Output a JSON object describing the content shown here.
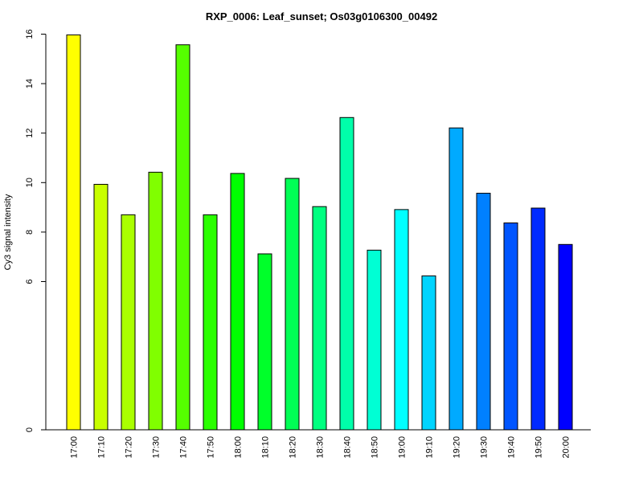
{
  "chart_data": {
    "type": "bar",
    "title": "RXP_0006: Leaf_sunset; Os03g0106300_00492",
    "xlabel": "",
    "ylabel": "Cy3 signal intensity",
    "ylim": [
      0,
      16
    ],
    "y_ticks": [
      0,
      6,
      8,
      10,
      12,
      14,
      16
    ],
    "y_scale": "compressed below 6",
    "grid": false,
    "legend": "none",
    "categories": [
      "17:00",
      "17:10",
      "17:20",
      "17:30",
      "17:40",
      "17:50",
      "18:00",
      "18:10",
      "18:20",
      "18:30",
      "18:40",
      "18:50",
      "19:00",
      "19:10",
      "19:20",
      "19:30",
      "19:40",
      "19:50",
      "20:00"
    ],
    "values": [
      15.97,
      9.93,
      8.7,
      10.42,
      15.57,
      8.7,
      10.37,
      7.12,
      10.17,
      9.03,
      12.63,
      7.27,
      8.91,
      6.23,
      12.21,
      9.57,
      8.37,
      8.97,
      7.5
    ],
    "colors": [
      "#FFFF00",
      "#C8FF00",
      "#AAFF00",
      "#80FF00",
      "#55FF00",
      "#2AFF00",
      "#00FF00",
      "#00FF2A",
      "#00FF55",
      "#00FF80",
      "#00FFAA",
      "#00FFD4",
      "#00FFFF",
      "#00D4FF",
      "#00AAFF",
      "#0080FF",
      "#0055FF",
      "#002AFF",
      "#0000FF"
    ]
  }
}
